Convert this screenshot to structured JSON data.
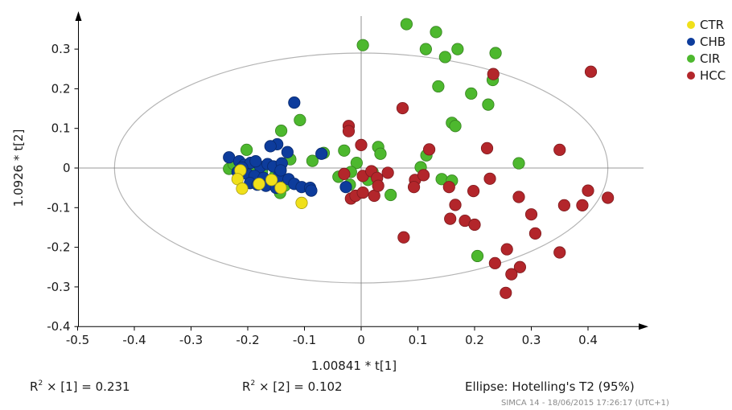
{
  "chart_data": {
    "type": "scatter",
    "xlabel": "1.00841 * t[1]",
    "ylabel": "1.0926 * t[2]",
    "xlim": [
      -0.5,
      0.5
    ],
    "ylim": [
      -0.4,
      0.4
    ],
    "x_ticks": [
      "-0.5",
      "-0.4",
      "-0.3",
      "-0.2",
      "-0.1",
      "0",
      "0.1",
      "0.2",
      "0.3",
      "0.4"
    ],
    "y_ticks": [
      "0.3",
      "0.2",
      "0.1",
      "0",
      "-0.1",
      "-0.2",
      "-0.3",
      "-0.4"
    ],
    "x_tick_values": [
      -0.5,
      -0.4,
      -0.3,
      -0.2,
      -0.1,
      0,
      0.1,
      0.2,
      0.3,
      0.4
    ],
    "y_tick_values": [
      0.3,
      0.2,
      0.1,
      0,
      -0.1,
      -0.2,
      -0.3,
      -0.4
    ],
    "ellipse": {
      "center": [
        0,
        0
      ],
      "rx": 0.435,
      "ry": 0.29
    },
    "legend_position": "top-right",
    "series": [
      {
        "name": "CIR",
        "color": "#4db82e",
        "points": [
          [
            0.08,
            0.363
          ],
          [
            0.132,
            0.343
          ],
          [
            0.003,
            0.31
          ],
          [
            0.114,
            0.3
          ],
          [
            0.17,
            0.3
          ],
          [
            0.237,
            0.29
          ],
          [
            0.148,
            0.28
          ],
          [
            0.232,
            0.222
          ],
          [
            0.136,
            0.206
          ],
          [
            0.194,
            0.188
          ],
          [
            0.224,
            0.16
          ],
          [
            0.16,
            0.114
          ],
          [
            0.166,
            0.106
          ],
          [
            -0.108,
            0.121
          ],
          [
            -0.141,
            0.094
          ],
          [
            -0.202,
            0.046
          ],
          [
            -0.03,
            0.044
          ],
          [
            -0.066,
            0.038
          ],
          [
            0.03,
            0.053
          ],
          [
            0.034,
            0.036
          ],
          [
            -0.125,
            0.022
          ],
          [
            -0.086,
            0.018
          ],
          [
            0.115,
            0.032
          ],
          [
            0.105,
            0.002
          ],
          [
            -0.008,
            0.013
          ],
          [
            -0.04,
            -0.022
          ],
          [
            -0.018,
            -0.01
          ],
          [
            0.142,
            -0.028
          ],
          [
            0.16,
            -0.032
          ],
          [
            0.278,
            0.012
          ],
          [
            -0.233,
            -0.002
          ],
          [
            -0.225,
            0.01
          ],
          [
            -0.175,
            -0.01
          ],
          [
            -0.152,
            -0.02
          ],
          [
            -0.135,
            -0.045
          ],
          [
            -0.185,
            0.004
          ],
          [
            0.02,
            -0.01
          ],
          [
            0.012,
            -0.03
          ],
          [
            -0.02,
            -0.042
          ],
          [
            -0.143,
            -0.063
          ],
          [
            0.052,
            -0.068
          ],
          [
            0.205,
            -0.222
          ]
        ]
      },
      {
        "name": "CHB",
        "color": "#0d3c9c",
        "points": [
          [
            -0.118,
            0.165
          ],
          [
            -0.233,
            0.027
          ],
          [
            -0.215,
            0.017
          ],
          [
            -0.206,
            0.008
          ],
          [
            -0.195,
            0.013
          ],
          [
            -0.178,
            0.003
          ],
          [
            -0.165,
            0.01
          ],
          [
            -0.155,
            0.004
          ],
          [
            -0.148,
            0.06
          ],
          [
            -0.16,
            0.055
          ],
          [
            -0.13,
            0.04
          ],
          [
            -0.07,
            0.036
          ],
          [
            -0.14,
            0.012
          ],
          [
            -0.218,
            -0.01
          ],
          [
            -0.2,
            -0.016
          ],
          [
            -0.188,
            -0.02
          ],
          [
            -0.172,
            -0.025
          ],
          [
            -0.158,
            -0.032
          ],
          [
            -0.146,
            -0.022
          ],
          [
            -0.128,
            -0.028
          ],
          [
            -0.118,
            -0.04
          ],
          [
            -0.105,
            -0.048
          ],
          [
            -0.09,
            -0.05
          ],
          [
            -0.196,
            -0.038
          ],
          [
            -0.183,
            -0.042
          ],
          [
            -0.168,
            -0.045
          ],
          [
            -0.15,
            -0.05
          ],
          [
            -0.088,
            -0.057
          ],
          [
            -0.027,
            -0.048
          ],
          [
            -0.21,
            0.001
          ],
          [
            -0.186,
            0.017
          ],
          [
            -0.142,
            -0.006
          ]
        ]
      },
      {
        "name": "CTR",
        "color": "#f0e01a",
        "points": [
          [
            -0.213,
            -0.006
          ],
          [
            -0.218,
            -0.028
          ],
          [
            -0.21,
            -0.052
          ],
          [
            -0.18,
            -0.04
          ],
          [
            -0.158,
            -0.03
          ],
          [
            -0.142,
            -0.05
          ],
          [
            -0.105,
            -0.088
          ]
        ]
      },
      {
        "name": "HCC",
        "color": "#b3262b",
        "points": [
          [
            0.405,
            0.243
          ],
          [
            0.233,
            0.237
          ],
          [
            0.073,
            0.151
          ],
          [
            -0.022,
            0.106
          ],
          [
            -0.022,
            0.093
          ],
          [
            0.0,
            0.058
          ],
          [
            0.12,
            0.047
          ],
          [
            0.222,
            0.05
          ],
          [
            0.35,
            0.046
          ],
          [
            -0.03,
            -0.015
          ],
          [
            0.003,
            -0.02
          ],
          [
            0.018,
            -0.008
          ],
          [
            0.047,
            -0.012
          ],
          [
            0.028,
            -0.025
          ],
          [
            0.095,
            -0.03
          ],
          [
            0.11,
            -0.018
          ],
          [
            0.227,
            -0.027
          ],
          [
            0.155,
            -0.048
          ],
          [
            0.093,
            -0.048
          ],
          [
            0.198,
            -0.058
          ],
          [
            -0.018,
            -0.077
          ],
          [
            -0.01,
            -0.07
          ],
          [
            0.003,
            -0.062
          ],
          [
            0.023,
            -0.07
          ],
          [
            0.03,
            -0.045
          ],
          [
            0.166,
            -0.093
          ],
          [
            0.278,
            -0.073
          ],
          [
            0.4,
            -0.057
          ],
          [
            0.435,
            -0.075
          ],
          [
            0.358,
            -0.094
          ],
          [
            0.39,
            -0.094
          ],
          [
            0.3,
            -0.117
          ],
          [
            0.157,
            -0.128
          ],
          [
            0.183,
            -0.133
          ],
          [
            0.2,
            -0.143
          ],
          [
            0.307,
            -0.165
          ],
          [
            0.075,
            -0.175
          ],
          [
            0.35,
            -0.213
          ],
          [
            0.257,
            -0.205
          ],
          [
            0.236,
            -0.24
          ],
          [
            0.28,
            -0.25
          ],
          [
            0.265,
            -0.268
          ],
          [
            0.255,
            -0.315
          ]
        ]
      }
    ]
  },
  "legend": [
    {
      "label": "CTR",
      "color": "#f0e01a"
    },
    {
      "label": "CHB",
      "color": "#0d3c9c"
    },
    {
      "label": "CIR",
      "color": "#4db82e"
    },
    {
      "label": "HCC",
      "color": "#b3262b"
    }
  ],
  "stats": {
    "r2_1_prefix": "R",
    "r2_1_suffix": " × [1] = 0.231",
    "r2_2_prefix": "R",
    "r2_2_suffix": " × [2] = 0.102",
    "ellipse_label": "Ellipse: Hotelling's T2 (95%)"
  },
  "footer": "SIMCA 14 - 18/06/2015 17:26:17 (UTC+1)"
}
